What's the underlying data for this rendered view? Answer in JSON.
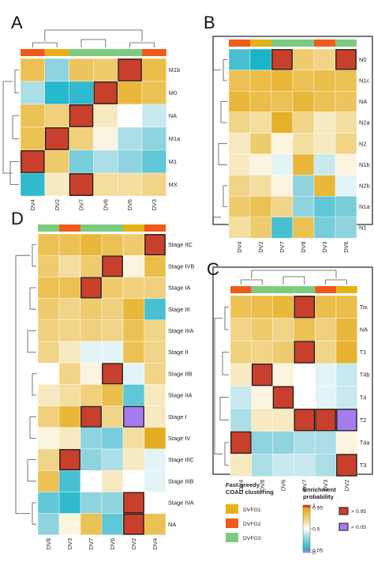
{
  "colors": {
    "DVFG1": "#E6B017",
    "DVFG2": "#F05A1A",
    "DVFG3": "#7DCB7F",
    "high": "#C8402B",
    "low": "#A77BF0",
    "scale": [
      "#18B4C9",
      "#8FD3DE",
      "#FFFFFF",
      "#F3DEA0",
      "#E9B73A",
      "#E3A718"
    ]
  },
  "legend": {
    "cluster_title_line1": "Fast-greedy",
    "cluster_title_line2": "COAD clustering",
    "clusters": [
      {
        "key": "DVFG1",
        "label": "DVFG1"
      },
      {
        "key": "DVFG2",
        "label": "DVFG2"
      },
      {
        "key": "DVFG3",
        "label": "DVFG3"
      }
    ],
    "enrich_title_line1": "Enrichment",
    "enrich_title_line2": "probability",
    "ticks": [
      "1",
      "0.95",
      "0.5",
      "0.05",
      "0"
    ],
    "high_label": "> 0.95",
    "low_label": "< 0.05"
  },
  "chart_data": [
    {
      "panel": "A",
      "type": "heatmap",
      "columns": [
        "DV4",
        "DV2",
        "DV7",
        "DV8",
        "DV6",
        "DV3"
      ],
      "column_groups": [
        "DVFG2",
        "DVFG1",
        "DVFG3",
        "DVFG3",
        "DVFG3",
        "DVFG2"
      ],
      "rows": [
        "M1b",
        "M0",
        "NA",
        "M1a",
        "M1",
        "MX"
      ],
      "values": [
        [
          0.8,
          0.3,
          0.78,
          0.75,
          0.97,
          0.82
        ],
        [
          0.35,
          0.08,
          0.1,
          0.97,
          0.85,
          0.8
        ],
        [
          0.8,
          0.72,
          0.97,
          0.6,
          0.5,
          0.4
        ],
        [
          0.8,
          0.97,
          0.72,
          0.55,
          0.35,
          0.3
        ],
        [
          0.97,
          0.75,
          0.25,
          0.35,
          0.3,
          0.2
        ],
        [
          0.1,
          0.6,
          0.97,
          0.65,
          0.65,
          0.7
        ]
      ],
      "highlight_high": [
        [
          0,
          4
        ],
        [
          1,
          3
        ],
        [
          2,
          2
        ],
        [
          3,
          1
        ],
        [
          4,
          0
        ],
        [
          5,
          2
        ]
      ],
      "highlight_low": []
    },
    {
      "panel": "B",
      "type": "heatmap",
      "columns": [
        "DV4",
        "DV2",
        "DV7",
        "DV8",
        "DV3",
        "DV6"
      ],
      "column_groups": [
        "DVFG2",
        "DVFG1",
        "DVFG3",
        "DVFG3",
        "DVFG2",
        "DVFG3"
      ],
      "rows": [
        "N0",
        "N1c",
        "NA",
        "N2a",
        "N2",
        "N1b",
        "N2b",
        "N1a",
        "N1"
      ],
      "values": [
        [
          0.15,
          0.05,
          0.97,
          0.75,
          0.7,
          0.97
        ],
        [
          0.8,
          0.82,
          0.85,
          0.8,
          0.82,
          0.8
        ],
        [
          0.85,
          0.82,
          0.8,
          0.85,
          0.8,
          0.78
        ],
        [
          0.7,
          0.65,
          0.9,
          0.7,
          0.6,
          0.65
        ],
        [
          0.6,
          0.75,
          0.55,
          0.65,
          0.6,
          0.7
        ],
        [
          0.6,
          0.55,
          0.45,
          0.85,
          0.4,
          0.55
        ],
        [
          0.7,
          0.65,
          0.55,
          0.3,
          0.85,
          0.45
        ],
        [
          0.75,
          0.8,
          0.7,
          0.3,
          0.2,
          0.25
        ],
        [
          0.65,
          0.75,
          0.15,
          0.8,
          0.25,
          0.3
        ]
      ],
      "highlight_high": [
        [
          0,
          2
        ],
        [
          0,
          5
        ]
      ],
      "highlight_low": []
    },
    {
      "panel": "C",
      "type": "heatmap",
      "columns": [
        "DV4",
        "DV8",
        "DV6",
        "DV7",
        "DV3",
        "DV2"
      ],
      "column_groups": [
        "DVFG2",
        "DVFG3",
        "DVFG3",
        "DVFG3",
        "DVFG2",
        "DVFG1"
      ],
      "rows": [
        "Tis",
        "NA",
        "T1",
        "T4b",
        "T4",
        "T2",
        "T4a",
        "T3"
      ],
      "values": [
        [
          0.8,
          0.82,
          0.85,
          0.97,
          0.82,
          0.82
        ],
        [
          0.7,
          0.75,
          0.7,
          0.8,
          0.72,
          0.85
        ],
        [
          0.72,
          0.7,
          0.75,
          0.97,
          0.7,
          0.88
        ],
        [
          0.6,
          0.97,
          0.55,
          0.5,
          0.45,
          0.4
        ],
        [
          0.4,
          0.55,
          0.97,
          0.5,
          0.45,
          0.4
        ],
        [
          0.35,
          0.6,
          0.6,
          0.97,
          0.97,
          0.02
        ],
        [
          0.97,
          0.3,
          0.3,
          0.35,
          0.35,
          0.55
        ],
        [
          0.6,
          0.35,
          0.4,
          0.4,
          0.35,
          0.97
        ]
      ],
      "highlight_high": [
        [
          0,
          3
        ],
        [
          2,
          3
        ],
        [
          3,
          1
        ],
        [
          4,
          2
        ],
        [
          5,
          3
        ],
        [
          5,
          4
        ],
        [
          6,
          0
        ],
        [
          7,
          5
        ]
      ],
      "highlight_low": [
        [
          5,
          5
        ]
      ]
    },
    {
      "panel": "D",
      "type": "heatmap",
      "columns": [
        "DV8",
        "DV3",
        "DV7",
        "DV6",
        "DV2",
        "DV4"
      ],
      "column_groups": [
        "DVFG3",
        "DVFG2",
        "DVFG3",
        "DVFG3",
        "DVFG1",
        "DVFG2"
      ],
      "rows": [
        "Stage IIC",
        "Stage IVB",
        "Stage IA",
        "Stage III",
        "Stage IIIA",
        "Stage II",
        "Stage IIB",
        "Stage IIA",
        "Stage I",
        "Stage IV",
        "Stage IIIC",
        "Stage IIIB",
        "Stage IVA",
        "NA"
      ],
      "values": [
        [
          0.8,
          0.8,
          0.85,
          0.8,
          0.75,
          0.97
        ],
        [
          0.75,
          0.65,
          0.75,
          0.97,
          0.55,
          0.82
        ],
        [
          0.8,
          0.8,
          0.97,
          0.75,
          0.72,
          0.72
        ],
        [
          0.75,
          0.7,
          0.75,
          0.72,
          0.85,
          0.15
        ],
        [
          0.72,
          0.7,
          0.72,
          0.7,
          0.8,
          0.7
        ],
        [
          0.7,
          0.6,
          0.45,
          0.45,
          0.8,
          0.7
        ],
        [
          0.5,
          0.7,
          0.55,
          0.97,
          0.45,
          0.7
        ],
        [
          0.6,
          0.65,
          0.72,
          0.82,
          0.2,
          0.6
        ],
        [
          0.72,
          0.85,
          0.97,
          0.7,
          0.02,
          0.6
        ],
        [
          0.55,
          0.6,
          0.3,
          0.25,
          0.65,
          0.92
        ],
        [
          0.7,
          0.97,
          0.3,
          0.35,
          0.6,
          0.45
        ],
        [
          0.8,
          0.15,
          0.5,
          0.6,
          0.5,
          0.45
        ],
        [
          0.2,
          0.1,
          0.3,
          0.3,
          0.97,
          0.5
        ],
        [
          0.3,
          0.55,
          0.8,
          0.2,
          0.97,
          0.8
        ]
      ],
      "highlight_high": [
        [
          0,
          5
        ],
        [
          1,
          3
        ],
        [
          2,
          2
        ],
        [
          6,
          3
        ],
        [
          8,
          2
        ],
        [
          10,
          1
        ],
        [
          12,
          4
        ],
        [
          13,
          4
        ]
      ],
      "highlight_low": [
        [
          8,
          4
        ]
      ]
    }
  ]
}
